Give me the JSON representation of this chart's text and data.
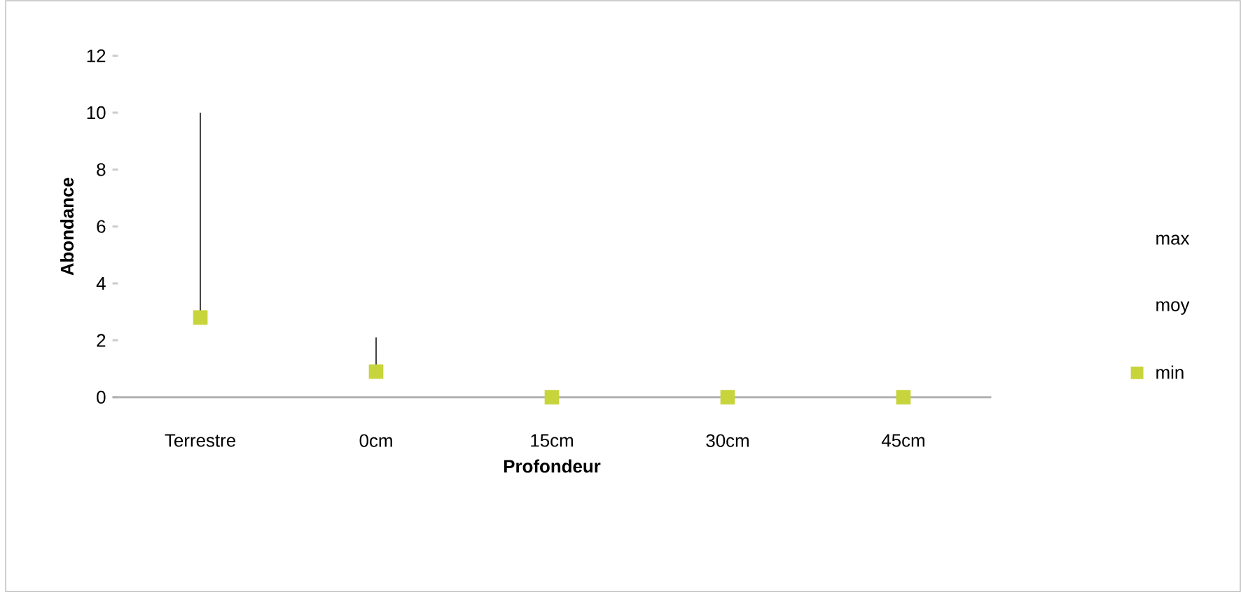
{
  "chart_data": {
    "type": "scatter",
    "xlabel": "Profondeur",
    "ylabel": "Abondance",
    "categories": [
      "Terrestre",
      "0cm",
      "15cm",
      "30cm",
      "45cm"
    ],
    "series": [
      {
        "name": "min",
        "color": "#c8d43c",
        "values": [
          2.8,
          0.9,
          0,
          0,
          0
        ],
        "errors": [
          [
            2.8,
            10
          ],
          [
            0.9,
            2.1
          ],
          null,
          null,
          null
        ]
      }
    ],
    "annotations": [
      "max",
      "moy"
    ],
    "ylim": [
      0,
      12
    ],
    "yticks": [
      0,
      2,
      4,
      6,
      8,
      10,
      12
    ],
    "marker": "square",
    "legend": "right",
    "grid": false
  }
}
